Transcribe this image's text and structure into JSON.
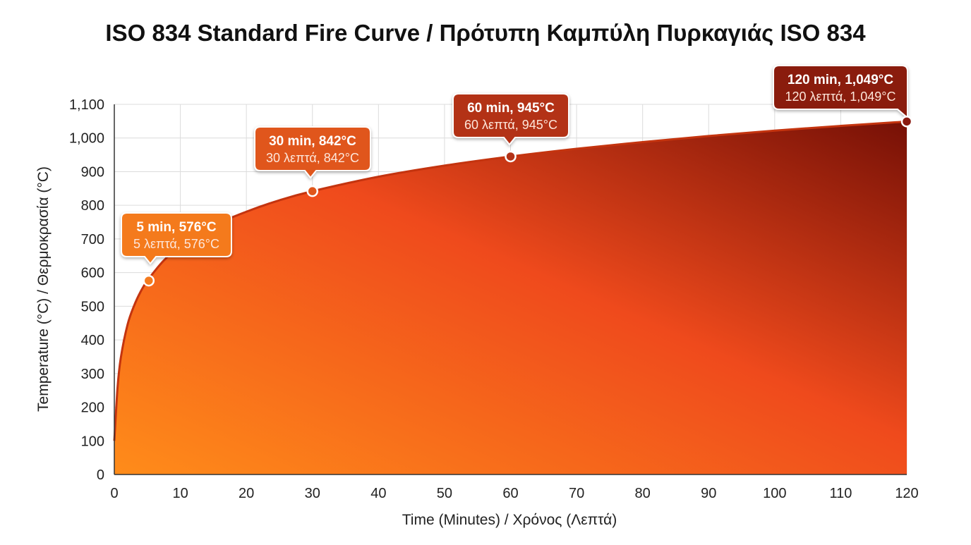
{
  "chart_data": {
    "type": "area",
    "title": "ISO 834 Standard Fire Curve / Πρότυπη Καμπύλη Πυρκαγιάς ISO 834",
    "xlabel": "Time (Minutes) / Χρόνος (Λεπτά)",
    "ylabel": "Temperature (°C) / Θερμοκρασία (°C)",
    "xlim": [
      0,
      120
    ],
    "ylim": [
      0,
      1100
    ],
    "grid": true,
    "x_ticks": [
      "0",
      "10",
      "20",
      "30",
      "40",
      "50",
      "60",
      "70",
      "80",
      "90",
      "100",
      "110",
      "120"
    ],
    "y_ticks": [
      "0",
      "100",
      "200",
      "300",
      "400",
      "500",
      "600",
      "700",
      "800",
      "900",
      "1,000",
      "1,100"
    ],
    "series": [
      {
        "name": "ISO 834",
        "x": [
          0,
          0.5,
          1,
          2,
          3,
          4,
          5,
          7.5,
          10,
          15,
          20,
          25,
          30,
          40,
          50,
          60,
          70,
          80,
          90,
          100,
          110,
          120
        ],
        "y": [
          100,
          261,
          349,
          445,
          502,
          544,
          576,
          636,
          678,
          739,
          781,
          815,
          842,
          885,
          918,
          945,
          968,
          988,
          1006,
          1022,
          1036,
          1049
        ]
      }
    ],
    "annotations": [
      {
        "x": 5,
        "y": 576,
        "title": "5 min, 576°C",
        "subtitle": "5 λεπτά, 576°C",
        "color": "#f47a1e"
      },
      {
        "x": 30,
        "y": 842,
        "title": "30 min, 842°C",
        "subtitle": "30 λεπτά, 842°C",
        "color": "#e0561b"
      },
      {
        "x": 60,
        "y": 945,
        "title": "60 min, 945°C",
        "subtitle": "60 λεπτά, 945°C",
        "color": "#b33318"
      },
      {
        "x": 120,
        "y": 1049,
        "title": "120 min, 1,049°C",
        "subtitle": "120 λεπτά, 1,049°C",
        "color": "#8a1a10"
      }
    ],
    "colors": {
      "fill_start": "#ff8c1a",
      "fill_mid": "#ef4a1c",
      "fill_end": "#761006",
      "line": "#c4340f"
    }
  }
}
